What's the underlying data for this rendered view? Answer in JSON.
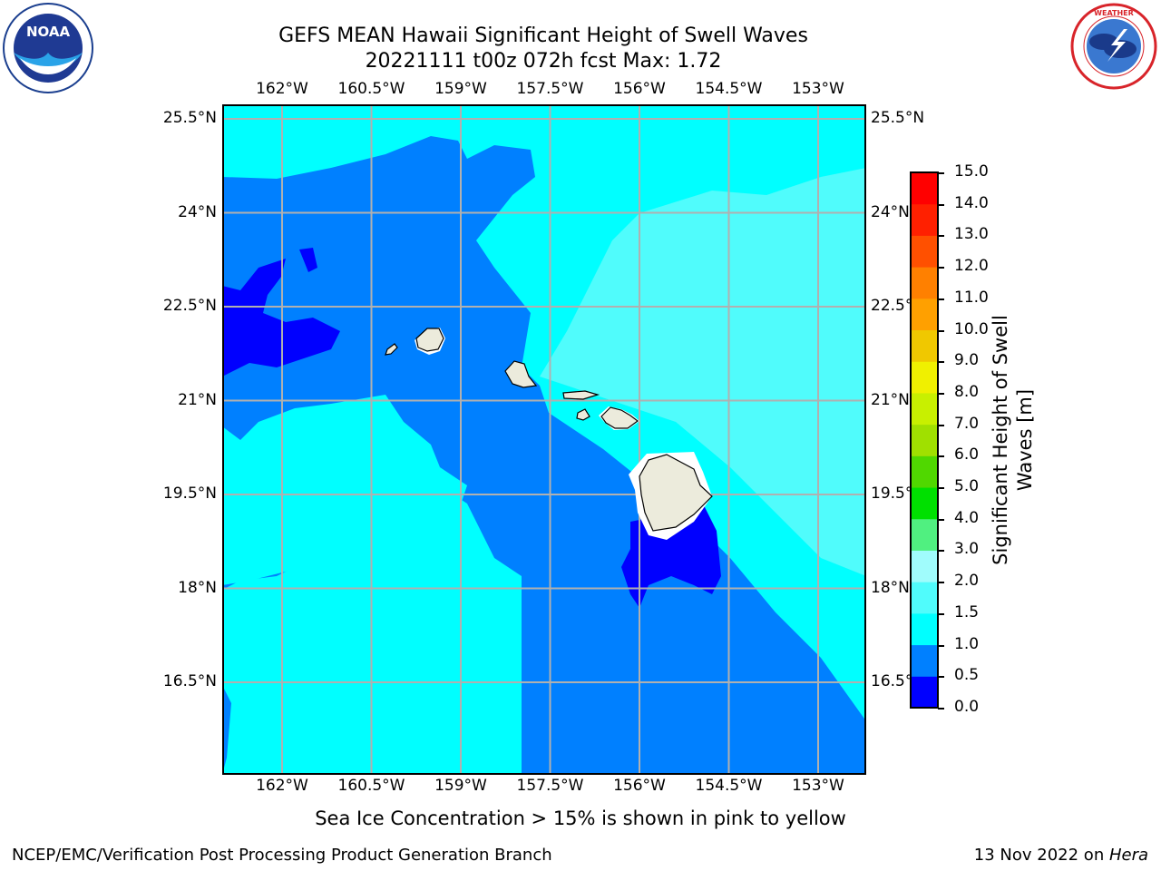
{
  "header": {
    "title_line1": "GEFS MEAN Hawaii Significant Height of Swell Waves",
    "title_line2": "20221111 t00z 072h fcst   Max: 1.72"
  },
  "logos": {
    "left": {
      "icon": "noaa-logo",
      "text": "NOAA",
      "ring_text": "NATIONAL OCEANIC AND ATMOSPHERIC ADMINISTRATION · U.S. DEPARTMENT OF COMMERCE"
    },
    "right": {
      "icon": "national-weather-service-logo",
      "ring_text": "NATIONAL WEATHER SERVICE"
    }
  },
  "map": {
    "lon_labels": [
      "162°W",
      "160.5°W",
      "159°W",
      "157.5°W",
      "156°W",
      "154.5°W",
      "153°W"
    ],
    "lat_labels": [
      "25.5°N",
      "24°N",
      "22.5°N",
      "21°N",
      "19.5°N",
      "18°N",
      "16.5°N"
    ],
    "lon_values": [
      -162,
      -160.5,
      -159,
      -157.5,
      -156,
      -154.5,
      -153
    ],
    "lat_values": [
      25.5,
      24,
      22.5,
      21,
      19.5,
      18,
      16.5
    ],
    "grid": true,
    "field": "Significant Height of Swell Waves",
    "max_value": 1.72
  },
  "colorbar": {
    "label": "Significant Height of Swell Waves [m]",
    "ticks": [
      "15.0",
      "14.0",
      "13.0",
      "12.0",
      "11.0",
      "10.0",
      "9.0",
      "8.0",
      "7.0",
      "6.0",
      "5.0",
      "4.0",
      "3.0",
      "2.0",
      "1.5",
      "1.0",
      "0.5",
      "0.0"
    ],
    "colors": [
      "#0000ff",
      "#0080ff",
      "#00ffff",
      "#50fcfc",
      "#a0fcfc",
      "#50f080",
      "#00e000",
      "#50d800",
      "#a0e000",
      "#c8f000",
      "#f0f000",
      "#f0c800",
      "#ffa000",
      "#ff8000",
      "#ff5000",
      "#ff2000",
      "#ff0000"
    ]
  },
  "notes": {
    "sea_ice": "Sea Ice Concentration > 15% is shown in pink to yellow"
  },
  "footer": {
    "left": "NCEP/EMC/Verification Post Processing Product Generation Branch",
    "right_prefix": "13 Nov 2022 on ",
    "right_host": "Hera"
  }
}
